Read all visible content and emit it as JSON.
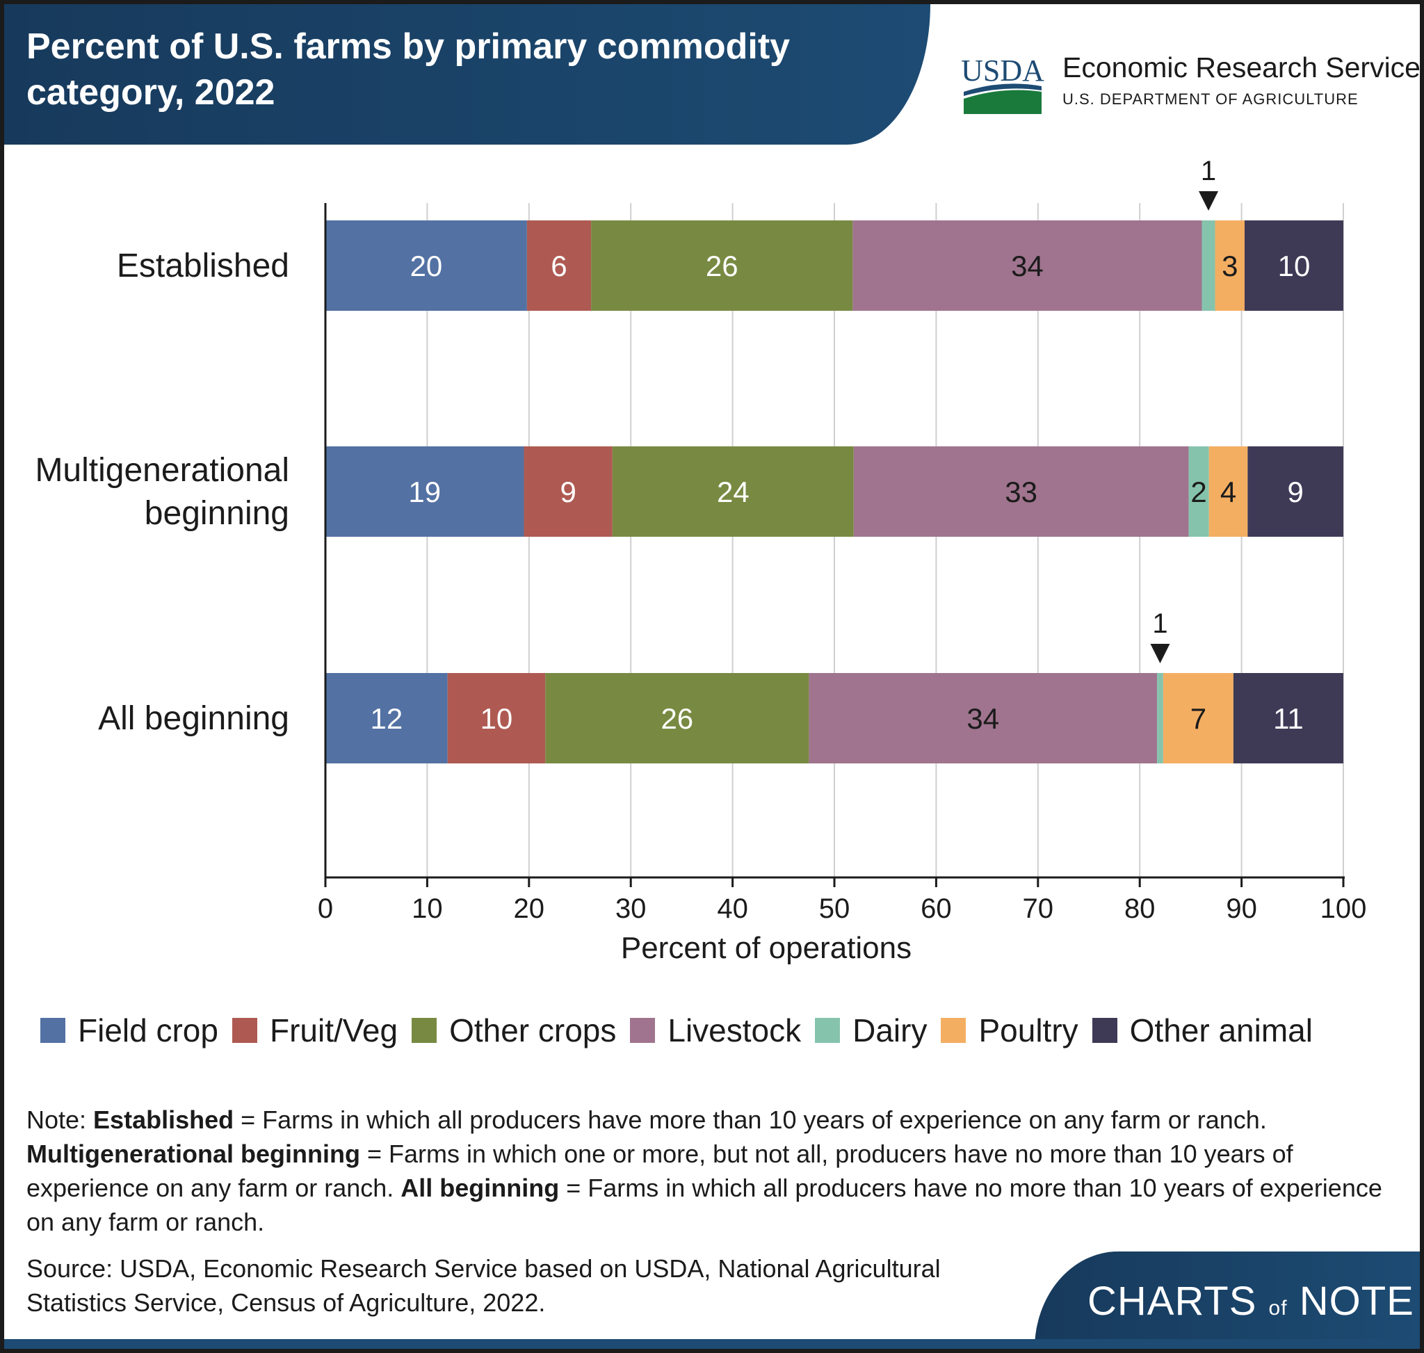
{
  "header": {
    "title": "Percent of U.S. farms by primary commodity category, 2022",
    "logo_text": "USDA",
    "agency_name": "Economic Research Service",
    "agency_dept": "U.S. DEPARTMENT OF AGRICULTURE"
  },
  "chart_data": {
    "type": "bar",
    "orientation": "horizontal",
    "stacked": true,
    "categories": [
      "Established",
      "Multigenerational beginning",
      "All beginning"
    ],
    "category_lines": [
      [
        "Established"
      ],
      [
        "Multigenerational",
        "beginning"
      ],
      [
        "All beginning"
      ]
    ],
    "series": [
      {
        "name": "Field crop",
        "color": "#5371a3",
        "values": [
          19.8,
          19.5,
          12.0
        ],
        "labels": [
          "20",
          "19",
          "12"
        ]
      },
      {
        "name": "Fruit/Veg",
        "color": "#ae5a52",
        "values": [
          6.3,
          8.7,
          9.6
        ],
        "labels": [
          "6",
          "9",
          "10"
        ]
      },
      {
        "name": "Other crops",
        "color": "#788a42",
        "values": [
          25.7,
          23.7,
          25.9
        ],
        "labels": [
          "26",
          "24",
          "26"
        ]
      },
      {
        "name": "Livestock",
        "color": "#a0748e",
        "values": [
          34.3,
          32.9,
          34.2
        ],
        "labels": [
          "34",
          "33",
          "34"
        ]
      },
      {
        "name": "Dairy",
        "color": "#86c3ad",
        "values": [
          1.3,
          2.0,
          0.6
        ],
        "labels": [
          "",
          "2",
          ""
        ]
      },
      {
        "name": "Poultry",
        "color": "#f4ae62",
        "values": [
          2.9,
          3.8,
          6.9
        ],
        "labels": [
          "3",
          "4",
          "7"
        ]
      },
      {
        "name": "Other animal",
        "color": "#3e3a56",
        "values": [
          9.7,
          9.4,
          10.8
        ],
        "labels": [
          "10",
          "9",
          "11"
        ]
      }
    ],
    "callouts": [
      {
        "category": "Established",
        "series": "Dairy",
        "label": "1"
      },
      {
        "category": "All beginning",
        "series": "Dairy",
        "label": "1"
      }
    ],
    "xlabel": "Percent of operations",
    "xlim": [
      0,
      100
    ],
    "xticks": [
      0,
      10,
      20,
      30,
      40,
      50,
      60,
      70,
      80,
      90,
      100
    ],
    "grid": true,
    "legend_position": "bottom"
  },
  "legend": [
    "Field crop",
    "Fruit/Veg",
    "Other crops",
    "Livestock",
    "Dairy",
    "Poultry",
    "Other animal"
  ],
  "note": {
    "prefix": "Note: ",
    "established_term": "Established",
    "established_def": " = Farms in which all producers have more than 10 years of experience on any farm or ranch. ",
    "multi_term": "Multigenerational beginning",
    "multi_def": " = Farms in which one or more, but not all, producers have no more than 10 years of experience on any farm or ranch. ",
    "all_term": "All beginning",
    "all_def": " = Farms in which all producers have no more than 10 years of experience on any farm or ranch."
  },
  "source": "Source: USDA, Economic Research Service based on USDA, National Agricultural Statistics Service, Census of Agriculture, 2022.",
  "footer_logo": {
    "part1": "CHARTS",
    "part2": "of",
    "part3": "NOTE"
  }
}
